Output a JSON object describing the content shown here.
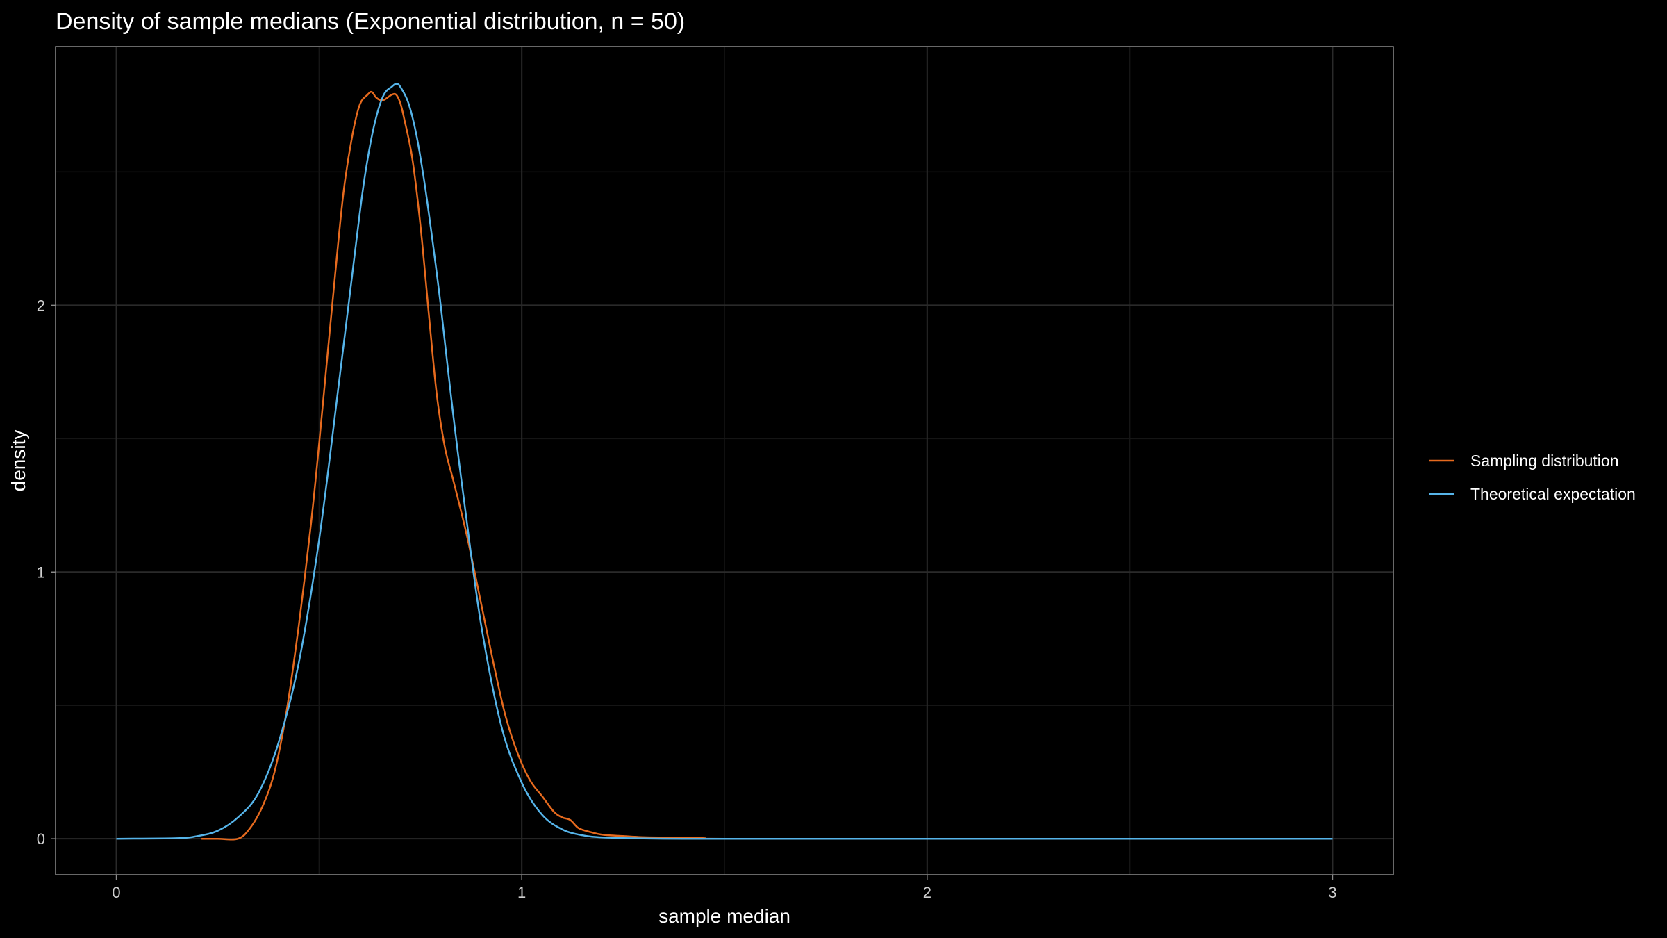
{
  "chart_data": {
    "type": "line",
    "title": "Density of sample medians (Exponential distribution, n = 50)",
    "xlabel": "sample median",
    "ylabel": "density",
    "xlim": [
      -0.15,
      3.15
    ],
    "ylim": [
      -0.135,
      2.97
    ],
    "x_ticks": [
      0,
      1,
      2,
      3
    ],
    "x_tick_labels": [
      "0",
      "1",
      "2",
      "3"
    ],
    "y_ticks": [
      0,
      1,
      2
    ],
    "y_tick_labels": [
      "0",
      "1",
      "2"
    ],
    "x_minor_grid": [
      0.5,
      1.5,
      2.5
    ],
    "y_minor_grid": [
      0.5,
      1.5,
      2.5
    ],
    "grid": true,
    "legend_position": "right",
    "colors": {
      "background": "#000000",
      "panel_border": "#8a8a8a",
      "grid_major": "#2a2a2a",
      "grid_minor": "#151515"
    },
    "series": [
      {
        "name": "Sampling distribution",
        "color": "#E66A1E",
        "x": [
          0.21,
          0.25,
          0.3,
          0.33,
          0.36,
          0.39,
          0.42,
          0.45,
          0.48,
          0.5,
          0.52,
          0.54,
          0.56,
          0.58,
          0.6,
          0.62,
          0.63,
          0.64,
          0.65,
          0.66,
          0.67,
          0.68,
          0.69,
          0.7,
          0.71,
          0.73,
          0.75,
          0.77,
          0.79,
          0.81,
          0.83,
          0.85,
          0.87,
          0.9,
          0.93,
          0.96,
          0.99,
          1.02,
          1.05,
          1.08,
          1.1,
          1.12,
          1.14,
          1.17,
          1.2,
          1.25,
          1.3,
          1.35,
          1.4,
          1.45,
          1.5,
          2.0,
          2.5,
          3.0
        ],
        "y": [
          0.0,
          0.0,
          0.0,
          0.04,
          0.12,
          0.25,
          0.48,
          0.8,
          1.18,
          1.48,
          1.8,
          2.12,
          2.42,
          2.62,
          2.75,
          2.79,
          2.8,
          2.78,
          2.77,
          2.77,
          2.78,
          2.79,
          2.79,
          2.76,
          2.7,
          2.55,
          2.3,
          1.98,
          1.67,
          1.47,
          1.35,
          1.23,
          1.1,
          0.88,
          0.66,
          0.46,
          0.32,
          0.22,
          0.16,
          0.1,
          0.08,
          0.07,
          0.04,
          0.025,
          0.015,
          0.01,
          0.006,
          0.005,
          0.005,
          0.002,
          0.0,
          0.0,
          0.0,
          0.0
        ]
      },
      {
        "name": "Theoretical expectation",
        "color": "#56B4E9",
        "x": [
          0.0,
          0.15,
          0.2,
          0.25,
          0.3,
          0.35,
          0.4,
          0.45,
          0.5,
          0.55,
          0.6,
          0.62,
          0.64,
          0.66,
          0.68,
          0.69,
          0.7,
          0.72,
          0.74,
          0.76,
          0.78,
          0.8,
          0.83,
          0.86,
          0.9,
          0.95,
          1.0,
          1.05,
          1.1,
          1.15,
          1.2,
          1.3,
          1.4,
          1.5,
          2.0,
          2.5,
          3.0
        ],
        "y": [
          0.0,
          0.002,
          0.01,
          0.03,
          0.08,
          0.17,
          0.36,
          0.66,
          1.12,
          1.72,
          2.34,
          2.55,
          2.7,
          2.79,
          2.82,
          2.83,
          2.82,
          2.76,
          2.64,
          2.46,
          2.24,
          2.0,
          1.6,
          1.24,
          0.8,
          0.42,
          0.21,
          0.09,
          0.035,
          0.013,
          0.005,
          0.001,
          0.0,
          0.0,
          0.0,
          0.0,
          0.0
        ]
      }
    ]
  }
}
